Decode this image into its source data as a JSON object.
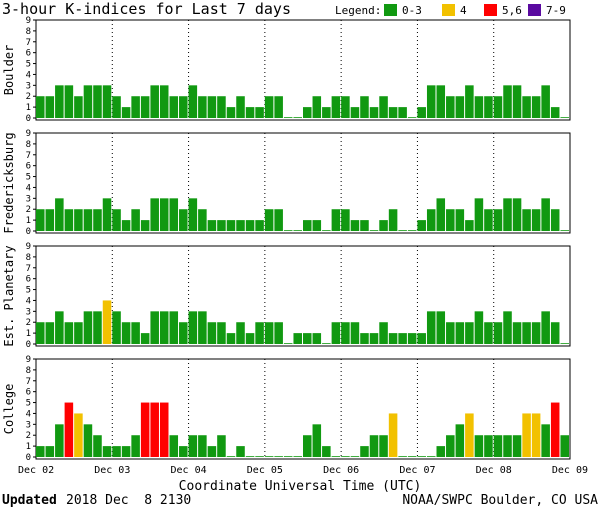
{
  "chart_data": {
    "type": "bar",
    "title": "3-hour K-indices for Last 7 days",
    "legend": {
      "title": "Legend:",
      "items": [
        {
          "label": "0-3",
          "color": "#119911"
        },
        {
          "label": "4",
          "color": "#f2c100"
        },
        {
          "label": "5,6",
          "color": "#ff0000"
        },
        {
          "label": "7-9",
          "color": "#5a0aa0"
        }
      ]
    },
    "xlabel": "Coordinate Universal Time (UTC)",
    "x_tick_labels": [
      "Dec 02",
      "Dec 03",
      "Dec 04",
      "Dec 05",
      "Dec 06",
      "Dec 07",
      "Dec 08",
      "Dec 09"
    ],
    "y_ticks": [
      "0",
      "1",
      "2",
      "3",
      "4",
      "5",
      "6",
      "7",
      "8",
      "9"
    ],
    "ylim": [
      0,
      9
    ],
    "grid": "dotted vertical at day boundaries",
    "panels": [
      {
        "name": "Boulder",
        "values": [
          2,
          2,
          3,
          3,
          2,
          3,
          3,
          3,
          2,
          1,
          2,
          2,
          3,
          3,
          2,
          2,
          3,
          2,
          2,
          2,
          1,
          2,
          1,
          1,
          2,
          2,
          0,
          0,
          1,
          2,
          1,
          2,
          2,
          1,
          2,
          1,
          2,
          1,
          1,
          0,
          1,
          3,
          3,
          2,
          2,
          3,
          2,
          2,
          2,
          3,
          3,
          2,
          2,
          3,
          1,
          0
        ]
      },
      {
        "name": "Fredericksburg",
        "values": [
          2,
          2,
          3,
          2,
          2,
          2,
          2,
          3,
          2,
          1,
          2,
          1,
          3,
          3,
          3,
          2,
          3,
          2,
          1,
          1,
          1,
          1,
          1,
          1,
          2,
          2,
          0,
          0,
          1,
          1,
          0,
          2,
          2,
          1,
          1,
          0,
          1,
          2,
          0,
          0,
          1,
          2,
          3,
          2,
          2,
          1,
          3,
          2,
          2,
          3,
          3,
          2,
          2,
          3,
          2,
          0
        ]
      },
      {
        "name": "Est. Planetary",
        "values": [
          2,
          2,
          3,
          2,
          2,
          3,
          3,
          4,
          3,
          2,
          2,
          1,
          3,
          3,
          3,
          2,
          3,
          3,
          2,
          2,
          1,
          2,
          1,
          2,
          2,
          2,
          0,
          1,
          1,
          1,
          0,
          2,
          2,
          2,
          1,
          1,
          2,
          1,
          1,
          1,
          1,
          3,
          3,
          2,
          2,
          2,
          3,
          2,
          2,
          3,
          2,
          2,
          2,
          3,
          2,
          0
        ]
      },
      {
        "name": "College",
        "values": [
          1,
          1,
          3,
          5,
          4,
          3,
          2,
          1,
          1,
          1,
          2,
          5,
          5,
          5,
          2,
          1,
          2,
          2,
          1,
          2,
          0,
          1,
          0,
          0,
          0,
          0,
          0,
          0,
          2,
          3,
          1,
          0,
          0,
          0,
          1,
          2,
          2,
          4,
          0,
          0,
          0,
          0,
          1,
          2,
          3,
          4,
          2,
          2,
          2,
          2,
          2,
          4,
          4,
          3,
          5,
          2
        ]
      }
    ]
  },
  "footer": {
    "updated_label": "Updated",
    "updated_value": "2018 Dec  8 2130",
    "source": "NOAA/SWPC Boulder, CO USA"
  }
}
